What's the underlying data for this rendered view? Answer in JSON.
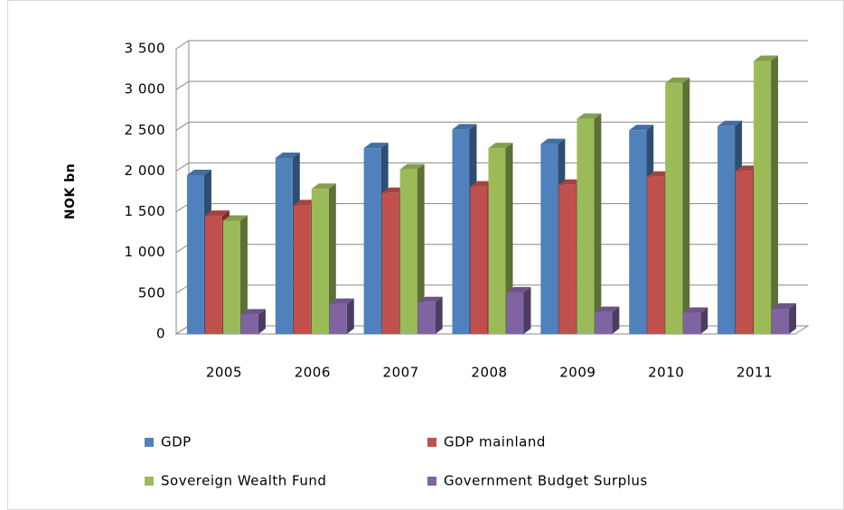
{
  "chart_data": {
    "type": "bar3d",
    "y_label": "NOK bn",
    "categories": [
      "2005",
      "2006",
      "2007",
      "2008",
      "2009",
      "2010",
      "2011"
    ],
    "series": [
      {
        "name": "GDP",
        "color": "#4f81bd",
        "values": [
          1950,
          2160,
          2280,
          2510,
          2330,
          2500,
          2550
        ]
      },
      {
        "name": "GDP mainland",
        "color": "#c0504d",
        "values": [
          1450,
          1580,
          1730,
          1810,
          1830,
          1930,
          2000
        ]
      },
      {
        "name": "Sovereign Wealth Fund",
        "color": "#9bbb59",
        "values": [
          1390,
          1780,
          2020,
          2280,
          2640,
          3080,
          3350
        ]
      },
      {
        "name": "Government Budget Surplus",
        "color": "#8064a2",
        "values": [
          240,
          370,
          390,
          510,
          270,
          260,
          310
        ]
      }
    ],
    "ylim": [
      0,
      3500
    ],
    "yticks": [
      0,
      500,
      {
        "value": 1000,
        "label": "1 000"
      },
      {
        "value": 1500,
        "label": "1 500"
      },
      {
        "value": 2000,
        "label": "2 000"
      },
      {
        "value": 2500,
        "label": "2 500"
      },
      {
        "value": 3000,
        "label": "3 000"
      },
      {
        "value": 3500,
        "label": "3 500"
      }
    ],
    "grid": true,
    "legend": "bottom"
  }
}
